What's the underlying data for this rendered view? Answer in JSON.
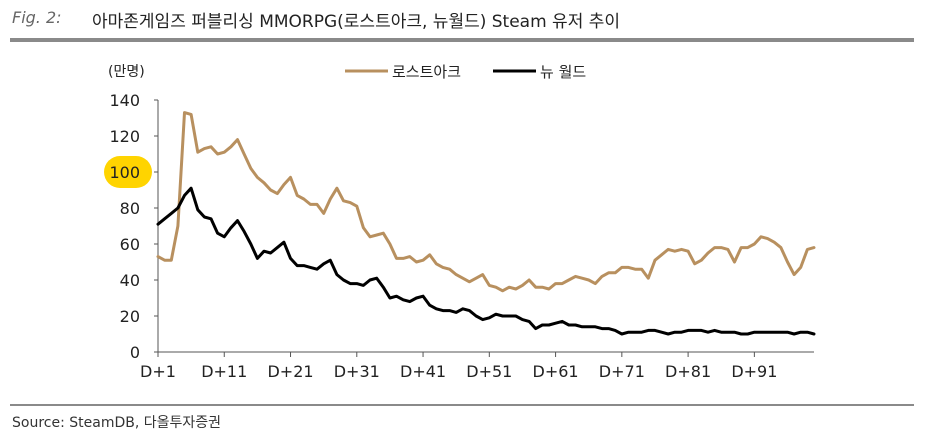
{
  "header": {
    "fig_label": "Fig. 2:",
    "title": "아마존게임즈 퍼블리싱 MMORPG(로스트아크, 뉴월드) Steam 유저 추이"
  },
  "footer": {
    "source": "Source: SteamDB, 다올투자증권"
  },
  "colors": {
    "lost_ark": "#b8905f",
    "new_world": "#000000",
    "highlight": "#ffd400",
    "rule": "#8a8a8a"
  },
  "chart_data": {
    "type": "line",
    "ylabel": "(만명)",
    "ylim": [
      0,
      140
    ],
    "yticks": [
      "0",
      "20",
      "40",
      "60",
      "80",
      "100",
      "120",
      "140"
    ],
    "highlight_tick": "100",
    "xticks": [
      "D+1",
      "D+11",
      "D+21",
      "D+31",
      "D+41",
      "D+51",
      "D+61",
      "D+71",
      "D+81",
      "D+91"
    ],
    "x_start": 1,
    "x_end": 100,
    "legend_position": "top",
    "series": [
      {
        "name": "로스트아크",
        "color": "#b8905f",
        "values": [
          53,
          51,
          51,
          70,
          133,
          132,
          111,
          113,
          114,
          110,
          111,
          114,
          118,
          110,
          102,
          97,
          94,
          90,
          88,
          93,
          97,
          87,
          85,
          82,
          82,
          77,
          85,
          91,
          84,
          83,
          81,
          69,
          64,
          65,
          66,
          60,
          52,
          52,
          53,
          50,
          51,
          54,
          49,
          47,
          46,
          43,
          41,
          39,
          41,
          43,
          37,
          36,
          34,
          36,
          35,
          37,
          40,
          36,
          36,
          35,
          38,
          38,
          40,
          42,
          41,
          40,
          38,
          42,
          44,
          44,
          47,
          47,
          46,
          46,
          41,
          51,
          54,
          57,
          56,
          57,
          56,
          49,
          51,
          55,
          58,
          58,
          57,
          50,
          58,
          58,
          60,
          64,
          63,
          61,
          58,
          50,
          43,
          47,
          57,
          58
        ]
      },
      {
        "name": "뉴 월드",
        "color": "#000000",
        "values": [
          71,
          74,
          77,
          80,
          87,
          91,
          79,
          75,
          74,
          66,
          64,
          69,
          73,
          67,
          60,
          52,
          56,
          55,
          58,
          61,
          52,
          48,
          48,
          47,
          46,
          49,
          51,
          43,
          40,
          38,
          38,
          37,
          40,
          41,
          36,
          30,
          31,
          29,
          28,
          30,
          31,
          26,
          24,
          23,
          23,
          22,
          24,
          23,
          20,
          18,
          19,
          21,
          20,
          20,
          20,
          18,
          17,
          13,
          15,
          15,
          16,
          17,
          15,
          15,
          14,
          14,
          14,
          13,
          13,
          12,
          10,
          11,
          11,
          11,
          12,
          12,
          11,
          10,
          11,
          11,
          12,
          12,
          12,
          11,
          12,
          11,
          11,
          11,
          10,
          10,
          11,
          11,
          11,
          11,
          11,
          11,
          10,
          11,
          11,
          10
        ]
      }
    ]
  }
}
